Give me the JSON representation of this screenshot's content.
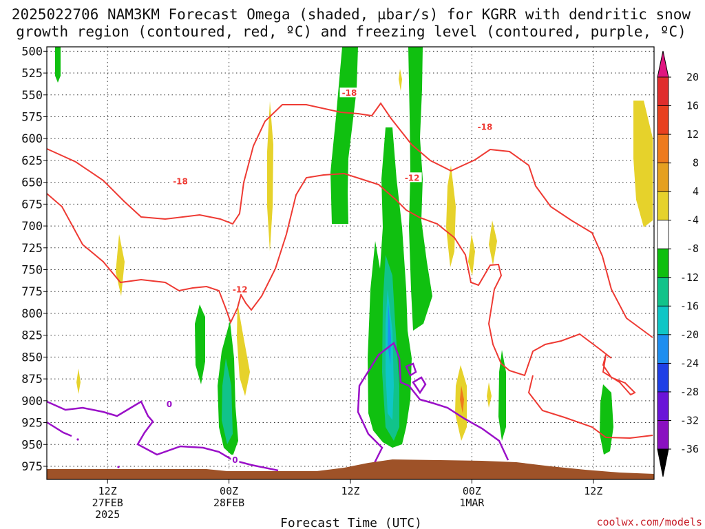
{
  "title_line1": "2025022706 NAM3KM Forecast Omega (shaded, µbar/s) for KGRR with dendritic snow",
  "title_line2": "growth region (contoured, red, ºC) and freezing level (contoured, purple, ºC)",
  "credit": "coolwx.com/models",
  "chart_data": {
    "type": "heatmap",
    "xlabel": "Forecast Time (UTC)",
    "ylabel": "",
    "x_range_hours_from_06Z_27FEB": [
      0,
      60
    ],
    "y_axis": {
      "inverted": true,
      "range_hpa": [
        990,
        495
      ],
      "ticks": [
        500,
        525,
        550,
        575,
        600,
        625,
        650,
        675,
        700,
        725,
        750,
        775,
        800,
        825,
        850,
        875,
        900,
        925,
        950,
        975
      ]
    },
    "x_ticks": [
      {
        "hour": 6,
        "line1": "12Z",
        "line2": "27FEB",
        "line3": "2025"
      },
      {
        "hour": 18,
        "line1": "00Z",
        "line2": "28FEB",
        "line3": ""
      },
      {
        "hour": 30,
        "line1": "12Z",
        "line2": "",
        "line3": ""
      },
      {
        "hour": 42,
        "line1": "00Z",
        "line2": "1MAR",
        "line3": ""
      },
      {
        "hour": 54,
        "line1": "12Z",
        "line2": "",
        "line3": ""
      }
    ],
    "grid": true,
    "colorbar": {
      "unit": "µbar/s",
      "labels": [
        "20",
        "16",
        "12",
        "8",
        "4",
        "-4",
        "-8",
        "-12",
        "-16",
        "-20",
        "-24",
        "-28",
        "-32",
        "-36"
      ],
      "colors": [
        "#e01580",
        "#e02d2d",
        "#e8401f",
        "#ee7a1d",
        "#e5a020",
        "#e6d22b",
        "#ffffff",
        "#0fbf0f",
        "#11c38a",
        "#0fc6c6",
        "#1d8ef0",
        "#1f3fe6",
        "#6a14d8",
        "#8a10c0",
        "#9f9f9f",
        "#000000"
      ]
    },
    "contour_labels": [
      {
        "field": "temperature",
        "text": "-18",
        "x_hour": 13.2,
        "p": 649
      },
      {
        "field": "temperature",
        "text": "-18",
        "x_hour": 29.9,
        "p": 548
      },
      {
        "field": "temperature",
        "text": "-18",
        "x_hour": 43.3,
        "p": 587
      },
      {
        "field": "temperature",
        "text": "-12",
        "x_hour": 36.1,
        "p": 645
      },
      {
        "field": "temperature",
        "text": "-12",
        "x_hour": 19.1,
        "p": 773
      },
      {
        "field": "freezing_level",
        "text": "0",
        "x_hour": 12.1,
        "p": 904
      },
      {
        "field": "freezing_level",
        "text": "0",
        "x_hour": 18.6,
        "p": 968
      }
    ],
    "series": [
      {
        "field": "temperature",
        "value": -18
      },
      {
        "field": "temperature",
        "value": -12
      },
      {
        "field": "freezing_level",
        "value": 0
      }
    ]
  }
}
